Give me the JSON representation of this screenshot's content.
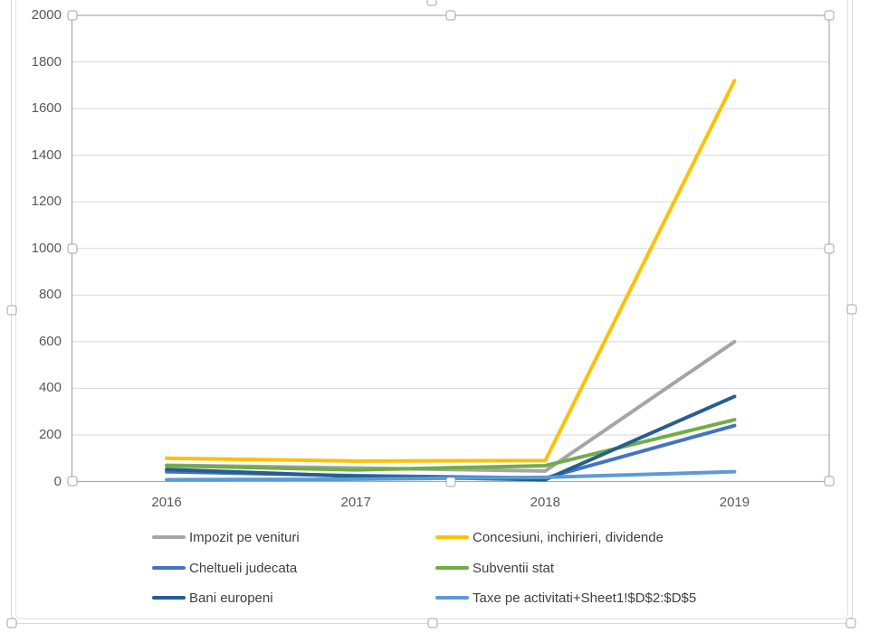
{
  "chart_data": {
    "type": "line",
    "x_categories": [
      "2016",
      "2017",
      "2018",
      "2019"
    ],
    "y_axis": {
      "min": 0,
      "max": 2000,
      "tick_step": 200,
      "tick_labels": [
        "0",
        "200",
        "400",
        "600",
        "800",
        "1000",
        "1200",
        "1400",
        "1600",
        "1800",
        "2000"
      ]
    },
    "grid": true,
    "legend_position": "bottom",
    "series": [
      {
        "name": "Impozit pe venituri",
        "color": "#A5A5A5",
        "values": [
          70,
          58,
          45,
          600
        ]
      },
      {
        "name": "Concesiuni, inchirieri, dividende",
        "color": "#FFC000",
        "values": [
          100,
          88,
          90,
          1720
        ]
      },
      {
        "name": "Cheltueli judecata",
        "color": "#4472C4",
        "values": [
          42,
          25,
          15,
          240
        ]
      },
      {
        "name": "Subventii stat",
        "color": "#70AD47",
        "values": [
          68,
          50,
          68,
          265
        ]
      },
      {
        "name": "Bani europeni",
        "color": "#255E91",
        "values": [
          52,
          22,
          8,
          365
        ]
      },
      {
        "name": "Taxe pe activitati+Sheet1!$D$2:$D$5",
        "color": "#5B9BD5",
        "values": [
          8,
          10,
          18,
          42
        ]
      }
    ]
  },
  "colors": {
    "gridline": "#D9D9D9",
    "axis_line": "#BFBFBF",
    "plot_selection_border": "#A9A9A9",
    "axis_text": "#595959",
    "legend_text": "#404040",
    "handle_border": "#A3A3A3"
  }
}
